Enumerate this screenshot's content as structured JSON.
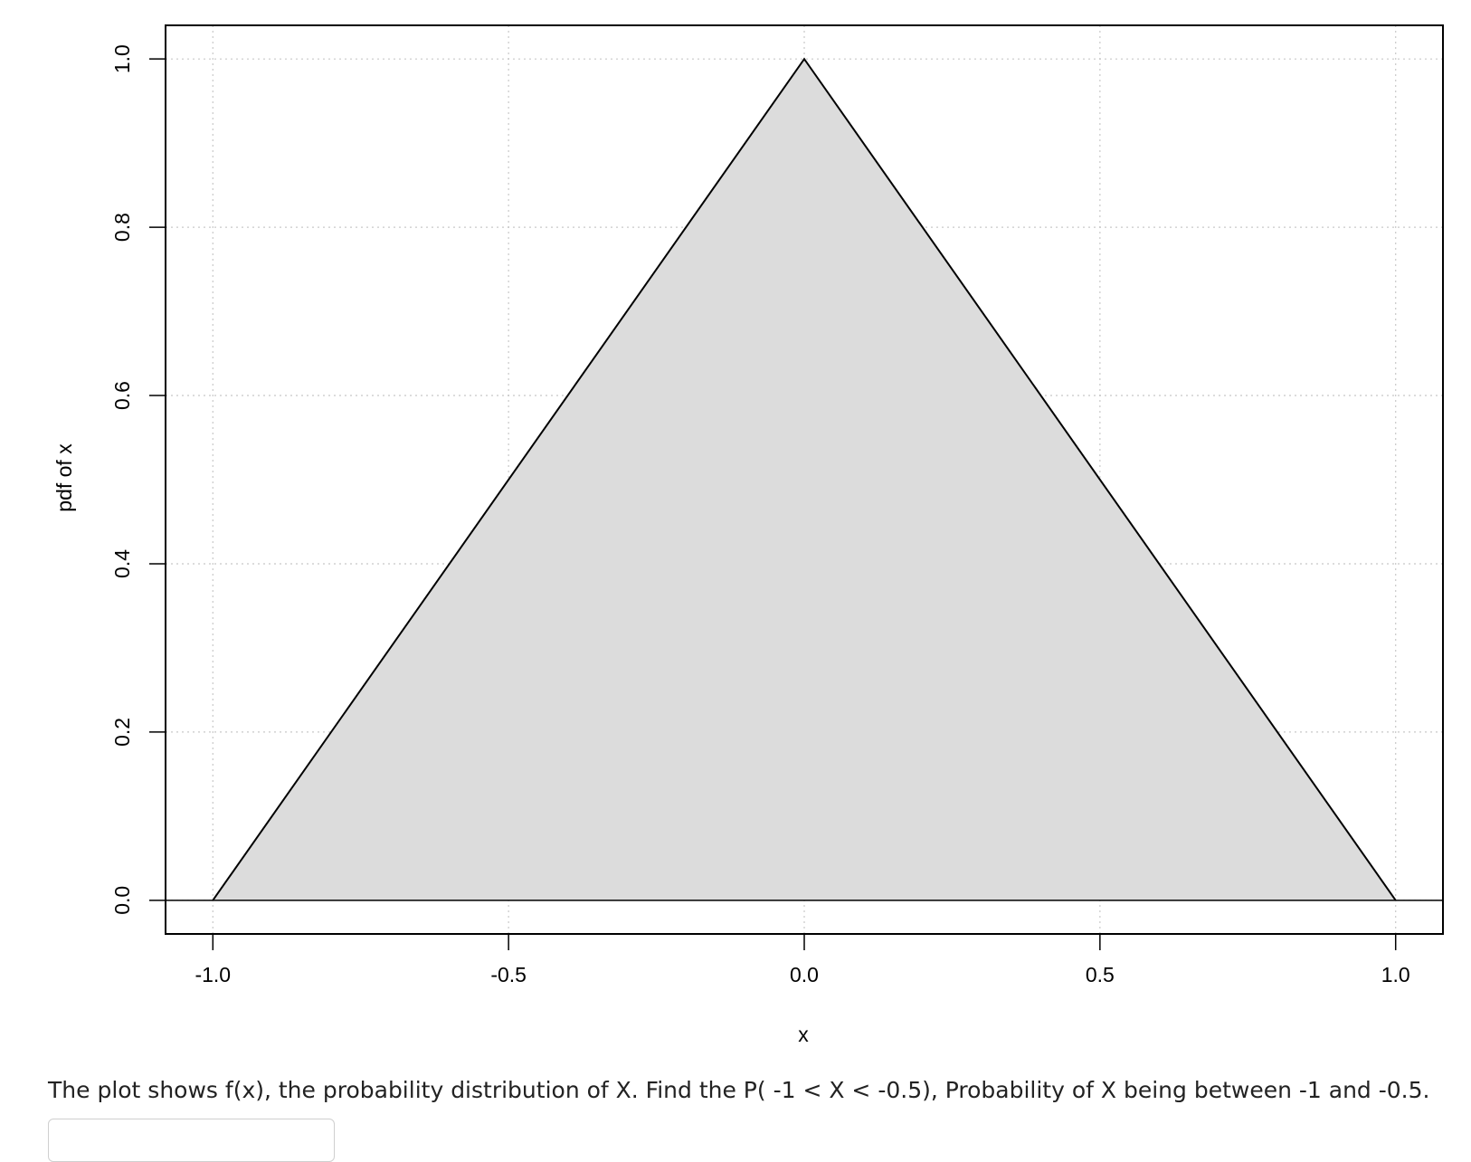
{
  "chart_data": {
    "type": "area",
    "title": "",
    "xlabel": "x",
    "ylabel": "pdf of x",
    "xlim": [
      -1.08,
      1.08
    ],
    "ylim": [
      -0.04,
      1.04
    ],
    "x_ticks": [
      -1.0,
      -0.5,
      0.0,
      0.5,
      1.0
    ],
    "x_tick_labels": [
      "-1.0",
      "-0.5",
      "0.0",
      "0.5",
      "1.0"
    ],
    "y_ticks": [
      0.0,
      0.2,
      0.4,
      0.6,
      0.8,
      1.0
    ],
    "y_tick_labels": [
      "0.0",
      "0.2",
      "0.4",
      "0.6",
      "0.8",
      "1.0"
    ],
    "grid": true,
    "grid_style": "dotted",
    "series": [
      {
        "x": [
          -1.0,
          0.0,
          1.0
        ],
        "y": [
          0.0,
          1.0,
          0.0
        ],
        "fill": "#dcdcdc",
        "stroke": "#000000"
      }
    ],
    "hline": 0.0
  },
  "question": {
    "text": "The plot shows f(x), the probability distribution of X. Find the P( -1 < X < -0.5), Probability of X being between -1 and -0.5."
  },
  "answer": {
    "value": "",
    "placeholder": ""
  }
}
